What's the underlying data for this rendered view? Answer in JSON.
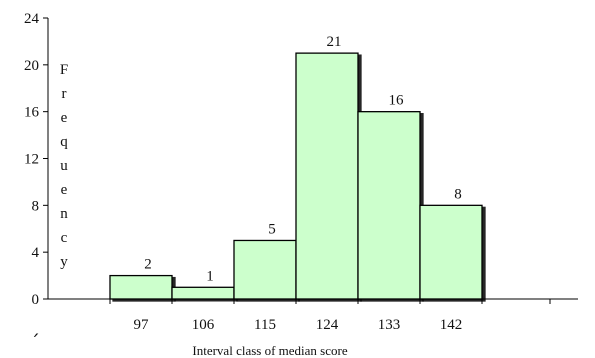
{
  "chart_data": {
    "type": "bar",
    "title": "",
    "xlabel": "Interval class of median score",
    "ylabel": "Frequency",
    "categories": [
      "97",
      "106",
      "115",
      "124",
      "133",
      "142"
    ],
    "values": [
      2,
      1,
      5,
      21,
      16,
      8
    ],
    "y_ticks": [
      0,
      4,
      8,
      12,
      16,
      20,
      24
    ],
    "ylim": [
      0,
      24
    ],
    "bar_color": "#ccffcc",
    "bar_edge_color": "#000000",
    "grid": false,
    "legend": "none"
  }
}
